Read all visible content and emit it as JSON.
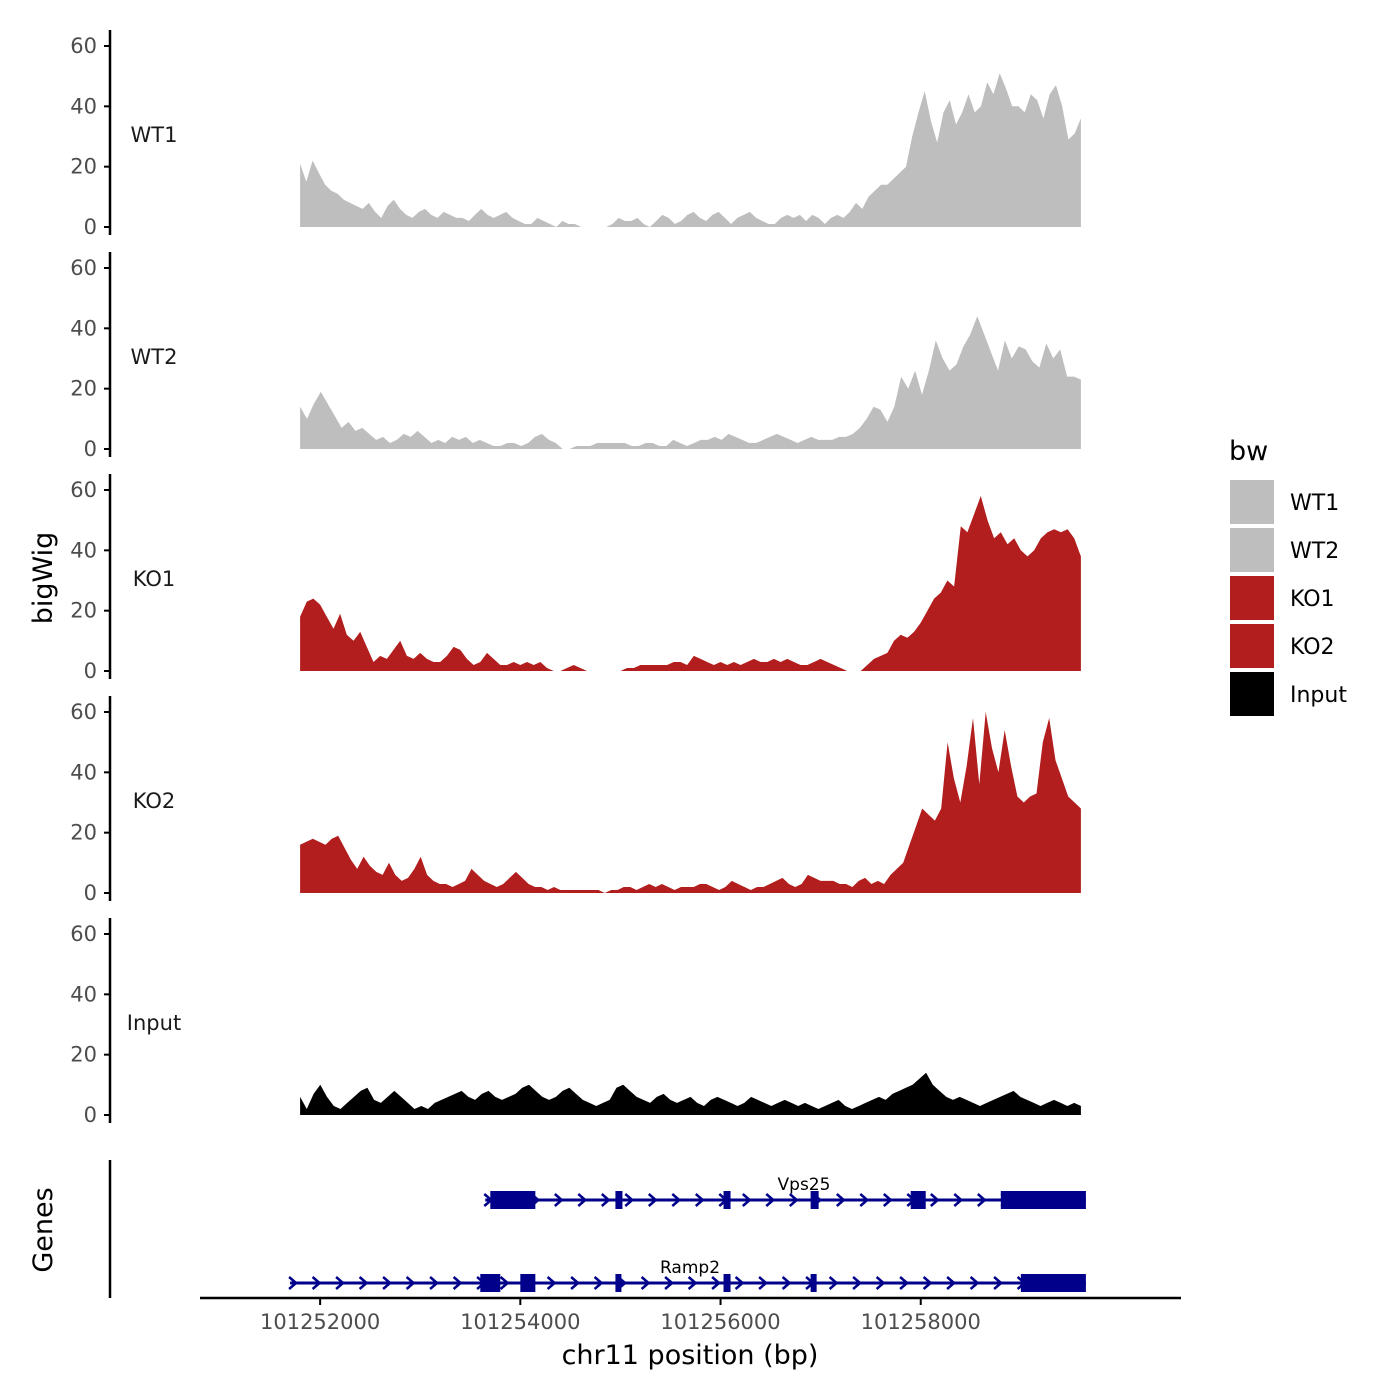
{
  "chart_data": {
    "type": "area",
    "ylabel": "bigWig",
    "xlabel": "chr11 position (bp)",
    "genes_label": "Genes",
    "legend": {
      "title": "bw",
      "entries": [
        {
          "label": "WT1",
          "color": "#BEBEBE"
        },
        {
          "label": "WT2",
          "color": "#BEBEBE"
        },
        {
          "label": "KO1",
          "color": "#B21E1E"
        },
        {
          "label": "KO2",
          "color": "#B21E1E"
        },
        {
          "label": "Input",
          "color": "#000000"
        }
      ],
      "placement": "right"
    },
    "xlim": [
      101250800,
      101260600
    ],
    "x_ticks": [
      101252000,
      101254000,
      101256000,
      101258000
    ],
    "x_tick_labels": [
      "101252000",
      "101254000",
      "101256000",
      "101258000"
    ],
    "ylim": [
      0,
      65
    ],
    "y_ticks": [
      0,
      20,
      40,
      60
    ],
    "y_tick_labels": [
      "0",
      "20",
      "40",
      "60"
    ],
    "data_range": [
      101251800,
      101259600
    ],
    "series": [
      {
        "name": "WT1",
        "color": "#BEBEBE",
        "values": [
          21,
          15,
          22,
          18,
          14,
          12,
          11,
          9,
          8,
          7,
          6,
          8,
          5,
          3,
          7,
          9,
          6,
          4,
          3,
          5,
          6,
          4,
          3,
          5,
          4,
          3,
          3,
          2,
          4,
          6,
          4,
          3,
          4,
          5,
          3,
          2,
          1,
          1,
          3,
          2,
          1,
          0,
          2,
          1,
          1,
          0,
          0,
          0,
          0,
          0,
          1,
          3,
          2,
          2,
          3,
          1,
          0,
          2,
          4,
          3,
          1,
          2,
          4,
          5,
          3,
          2,
          4,
          5,
          3,
          1,
          3,
          4,
          5,
          3,
          2,
          1,
          1,
          3,
          4,
          3,
          4,
          2,
          4,
          3,
          1,
          3,
          4,
          3,
          5,
          8,
          6,
          10,
          12,
          14,
          14,
          16,
          18,
          20,
          30,
          38,
          45,
          35,
          28,
          38,
          42,
          34,
          38,
          44,
          38,
          40,
          48,
          44,
          51,
          46,
          40,
          40,
          38,
          44,
          42,
          36,
          44,
          47,
          40,
          29,
          31,
          36
        ]
      },
      {
        "name": "WT2",
        "color": "#BEBEBE",
        "values": [
          14,
          10,
          15,
          19,
          15,
          11,
          7,
          9,
          6,
          7,
          5,
          3,
          4,
          2,
          3,
          5,
          4,
          6,
          4,
          2,
          3,
          2,
          4,
          3,
          4,
          2,
          3,
          2,
          1,
          1,
          2,
          2,
          1,
          2,
          4,
          5,
          3,
          2,
          0,
          0,
          1,
          1,
          1,
          2,
          2,
          2,
          2,
          2,
          1,
          1,
          2,
          2,
          1,
          1,
          3,
          2,
          1,
          2,
          3,
          3,
          4,
          3,
          5,
          4,
          3,
          2,
          2,
          3,
          4,
          5,
          4,
          3,
          2,
          3,
          4,
          3,
          3,
          3,
          4,
          4,
          5,
          7,
          10,
          14,
          13,
          9,
          14,
          24,
          20,
          26,
          18,
          26,
          36,
          30,
          26,
          28,
          34,
          38,
          44,
          38,
          32,
          26,
          36,
          30,
          34,
          33,
          29,
          27,
          35,
          30,
          33,
          24,
          24,
          23
        ]
      },
      {
        "name": "KO1",
        "color": "#B21E1E",
        "values": [
          18,
          23,
          24,
          22,
          18,
          14,
          19,
          12,
          10,
          13,
          8,
          3,
          5,
          4,
          7,
          10,
          5,
          4,
          6,
          4,
          3,
          3,
          5,
          8,
          7,
          4,
          2,
          3,
          6,
          4,
          2,
          2,
          3,
          2,
          3,
          2,
          3,
          1,
          0,
          0,
          1,
          2,
          1,
          0,
          0,
          0,
          0,
          0,
          0,
          1,
          1,
          2,
          2,
          2,
          2,
          2,
          3,
          3,
          2,
          5,
          4,
          3,
          2,
          3,
          2,
          3,
          2,
          3,
          4,
          3,
          3,
          4,
          3,
          4,
          3,
          2,
          2,
          3,
          4,
          3,
          2,
          1,
          0,
          0,
          0,
          2,
          4,
          5,
          6,
          10,
          12,
          11,
          13,
          16,
          20,
          24,
          26,
          30,
          28,
          48,
          46,
          52,
          58,
          50,
          44,
          46,
          42,
          44,
          40,
          38,
          40,
          44,
          46,
          47,
          46,
          47,
          44,
          38
        ]
      },
      {
        "name": "KO2",
        "color": "#B21E1E",
        "values": [
          16,
          17,
          18,
          17,
          16,
          18,
          19,
          15,
          11,
          8,
          12,
          9,
          7,
          6,
          10,
          6,
          4,
          5,
          8,
          12,
          6,
          4,
          3,
          3,
          2,
          3,
          4,
          8,
          6,
          4,
          3,
          2,
          3,
          5,
          7,
          5,
          3,
          2,
          2,
          1,
          2,
          1,
          1,
          1,
          1,
          1,
          1,
          1,
          0,
          1,
          1,
          2,
          2,
          1,
          2,
          3,
          2,
          3,
          2,
          1,
          2,
          2,
          2,
          3,
          3,
          2,
          1,
          2,
          4,
          3,
          2,
          1,
          2,
          2,
          3,
          4,
          5,
          3,
          2,
          3,
          6,
          5,
          4,
          4,
          4,
          3,
          3,
          2,
          4,
          5,
          3,
          4,
          3,
          6,
          8,
          10,
          16,
          22,
          28,
          26,
          24,
          28,
          50,
          38,
          30,
          42,
          58,
          36,
          60,
          48,
          40,
          54,
          42,
          32,
          30,
          32,
          33,
          50,
          58,
          44,
          38,
          32,
          30,
          28
        ]
      },
      {
        "name": "Input",
        "color": "#000000",
        "values": [
          6,
          2,
          7,
          10,
          6,
          3,
          2,
          4,
          6,
          8,
          9,
          5,
          4,
          6,
          8,
          6,
          4,
          2,
          3,
          2,
          4,
          5,
          6,
          7,
          8,
          6,
          5,
          7,
          8,
          6,
          5,
          6,
          7,
          9,
          10,
          8,
          6,
          5,
          6,
          8,
          9,
          7,
          5,
          4,
          3,
          4,
          5,
          9,
          10,
          8,
          6,
          5,
          4,
          6,
          7,
          5,
          4,
          5,
          6,
          4,
          3,
          5,
          6,
          5,
          4,
          3,
          4,
          6,
          5,
          4,
          3,
          4,
          5,
          4,
          3,
          4,
          3,
          2,
          3,
          4,
          5,
          3,
          2,
          3,
          4,
          5,
          6,
          5,
          7,
          8,
          9,
          10,
          12,
          14,
          10,
          8,
          6,
          5,
          6,
          5,
          4,
          3,
          4,
          5,
          6,
          7,
          8,
          6,
          5,
          4,
          3,
          4,
          5,
          4,
          3,
          4,
          3
        ]
      }
    ],
    "genes": [
      {
        "name": "Vps25",
        "start": 101253650,
        "end": 101259650,
        "exons": [
          [
            101253700,
            101254150
          ],
          [
            101254950,
            101255020
          ],
          [
            101256030,
            101256100
          ],
          [
            101256900,
            101256980
          ],
          [
            101257900,
            101258050
          ],
          [
            101258800,
            101259650
          ]
        ]
      },
      {
        "name": "Ramp2",
        "start": 101251700,
        "end": 101259650,
        "exons": [
          [
            101253600,
            101253800
          ],
          [
            101254000,
            101254150
          ],
          [
            101254950,
            101255000
          ],
          [
            101256030,
            101256100
          ],
          [
            101256900,
            101256960
          ],
          [
            101259000,
            101259650
          ]
        ]
      }
    ]
  },
  "colors": {
    "gene": "#00008B",
    "axis": "#000000",
    "tick_label": "#4D4D4D"
  }
}
